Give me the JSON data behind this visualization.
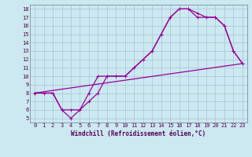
{
  "xlabel": "Windchill (Refroidissement éolien,°C)",
  "bg_color": "#cce8f0",
  "grid_color": "#aaccda",
  "line_color": "#990099",
  "xlim": [
    -0.5,
    23.5
  ],
  "ylim": [
    4.5,
    18.5
  ],
  "xticks": [
    0,
    1,
    2,
    3,
    4,
    5,
    6,
    7,
    8,
    9,
    10,
    11,
    12,
    13,
    14,
    15,
    16,
    17,
    18,
    19,
    20,
    21,
    22,
    23
  ],
  "yticks": [
    5,
    6,
    7,
    8,
    9,
    10,
    11,
    12,
    13,
    14,
    15,
    16,
    17,
    18
  ],
  "curve1_x": [
    0,
    1,
    2,
    3,
    4,
    5,
    6,
    7,
    8,
    9,
    10,
    11,
    12,
    13,
    14,
    15,
    16,
    17,
    18,
    19,
    20,
    21,
    22,
    23
  ],
  "curve1_y": [
    8,
    8,
    8,
    6,
    6,
    6,
    8,
    10,
    10,
    10,
    10,
    11,
    12,
    13,
    15,
    17,
    18,
    18,
    17.5,
    17,
    17,
    16,
    13,
    11.5
  ],
  "curve2_x": [
    0,
    2,
    3,
    4,
    5,
    6,
    7,
    8,
    9,
    10,
    11,
    12,
    13,
    14,
    15,
    16,
    17,
    18,
    19,
    20,
    21,
    22,
    23
  ],
  "curve2_y": [
    8,
    8,
    6,
    5,
    6,
    7,
    8,
    10,
    10,
    10,
    11,
    12,
    13,
    15,
    17,
    18,
    18,
    17,
    17,
    17,
    16,
    13,
    11.5
  ],
  "line3_x": [
    0,
    23
  ],
  "line3_y": [
    8,
    11.5
  ],
  "marker_size": 3,
  "line_width": 0.9,
  "tick_fontsize": 5,
  "xlabel_fontsize": 5.5
}
